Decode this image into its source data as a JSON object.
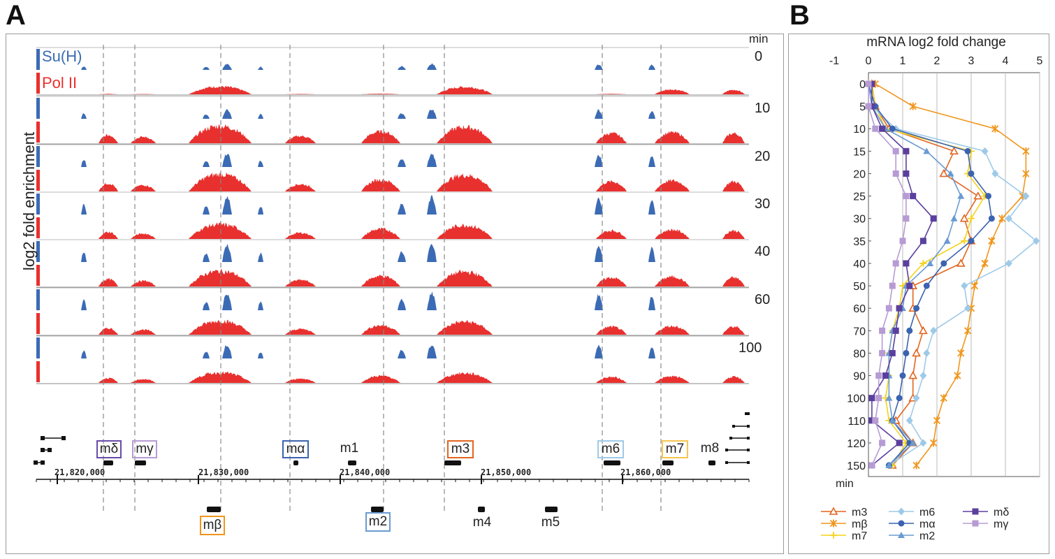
{
  "panel_a": {
    "letter": "A",
    "ylabel": "log2 fold enrichment",
    "time_header": "min",
    "track_labels": {
      "suh": "Su(H)",
      "pol": "Pol II"
    },
    "time_points": [
      "0",
      "10",
      "20",
      "30",
      "40",
      "60",
      "100"
    ],
    "coord_ticks": [
      "21,820,000",
      "21,830,000",
      "21,840,000",
      "21,850,000",
      "21,860,000"
    ],
    "genes_top": [
      "mδ",
      "mγ",
      "mα",
      "m1",
      "m3",
      "m6",
      "m7",
      "m8"
    ],
    "genes_bottom": [
      "mβ",
      "m2",
      "m4",
      "m5"
    ],
    "colors": {
      "suh": "#3b6bb5",
      "pol": "#e8302e"
    }
  },
  "panel_b": {
    "letter": "B",
    "legend": {
      "col1": [
        "m3",
        "mβ",
        "m7"
      ],
      "col2": [
        "m6",
        "mα",
        "m2"
      ],
      "col3": [
        "mδ",
        "mγ"
      ]
    }
  },
  "chart_data": {
    "type": "line",
    "title": "mRNA log2 fold change",
    "xlabel": "mRNA log2 fold change",
    "ylabel": "min",
    "xlim": [
      -1,
      5
    ],
    "xticks": [
      -1,
      0,
      1,
      2,
      3,
      4,
      5
    ],
    "y": [
      0,
      5,
      10,
      15,
      20,
      25,
      30,
      35,
      40,
      50,
      60,
      70,
      80,
      90,
      100,
      110,
      120,
      150
    ],
    "grid": true,
    "legend_position": "bottom",
    "series": [
      {
        "name": "m3",
        "color": "#e2651f",
        "marker": "triangle-open",
        "values": [
          0.1,
          0.2,
          0.6,
          2.5,
          2.2,
          3.2,
          2.8,
          3.0,
          2.7,
          1.3,
          1.3,
          1.6,
          1.4,
          1.3,
          1.3,
          0.8,
          1.3,
          0.7
        ]
      },
      {
        "name": "mβ",
        "color": "#f0961c",
        "marker": "star",
        "values": [
          0.2,
          1.3,
          3.7,
          4.6,
          4.6,
          4.5,
          3.9,
          3.6,
          3.4,
          3.1,
          3.0,
          2.9,
          2.7,
          2.6,
          2.2,
          2.0,
          1.9,
          1.4
        ]
      },
      {
        "name": "m7",
        "color": "#f5d21c",
        "marker": "plus",
        "values": [
          0.1,
          0.2,
          0.5,
          3.0,
          2.9,
          3.4,
          3.0,
          2.8,
          1.6,
          1.0,
          0.9,
          0.7,
          0.6,
          0.6,
          0.5,
          0.6,
          1.1,
          0.7
        ]
      },
      {
        "name": "m6",
        "color": "#9ecae8",
        "marker": "diamond",
        "values": [
          0.0,
          0.1,
          0.8,
          3.4,
          3.7,
          4.6,
          4.1,
          4.9,
          4.1,
          2.8,
          2.9,
          1.9,
          1.7,
          1.6,
          1.4,
          1.2,
          1.6,
          0.6
        ]
      },
      {
        "name": "mα",
        "color": "#3b63b0",
        "marker": "circle",
        "values": [
          0.0,
          0.2,
          0.7,
          2.9,
          3.0,
          3.5,
          3.6,
          3.0,
          2.2,
          1.7,
          1.4,
          1.2,
          1.1,
          1.0,
          0.9,
          0.7,
          1.2,
          0.6
        ]
      },
      {
        "name": "m2",
        "color": "#6a9bd1",
        "marker": "triangle",
        "values": [
          0.0,
          0.1,
          0.5,
          1.7,
          2.4,
          2.7,
          2.5,
          2.3,
          1.8,
          1.1,
          1.0,
          0.7,
          0.6,
          0.6,
          0.6,
          0.7,
          1.3,
          0.6
        ]
      },
      {
        "name": "mδ",
        "color": "#5b3f9e",
        "marker": "square",
        "values": [
          0.1,
          0.1,
          0.4,
          1.1,
          1.1,
          1.3,
          1.9,
          1.6,
          1.1,
          1.2,
          0.9,
          0.8,
          0.7,
          0.5,
          0.1,
          0.1,
          0.9,
          0.1
        ]
      },
      {
        "name": "mγ",
        "color": "#b79bd4",
        "marker": "square",
        "values": [
          0.0,
          0.0,
          0.2,
          0.8,
          0.8,
          1.1,
          1.1,
          1.0,
          0.8,
          0.7,
          0.6,
          0.4,
          0.4,
          0.3,
          0.3,
          0.2,
          0.4,
          0.1
        ]
      }
    ]
  }
}
